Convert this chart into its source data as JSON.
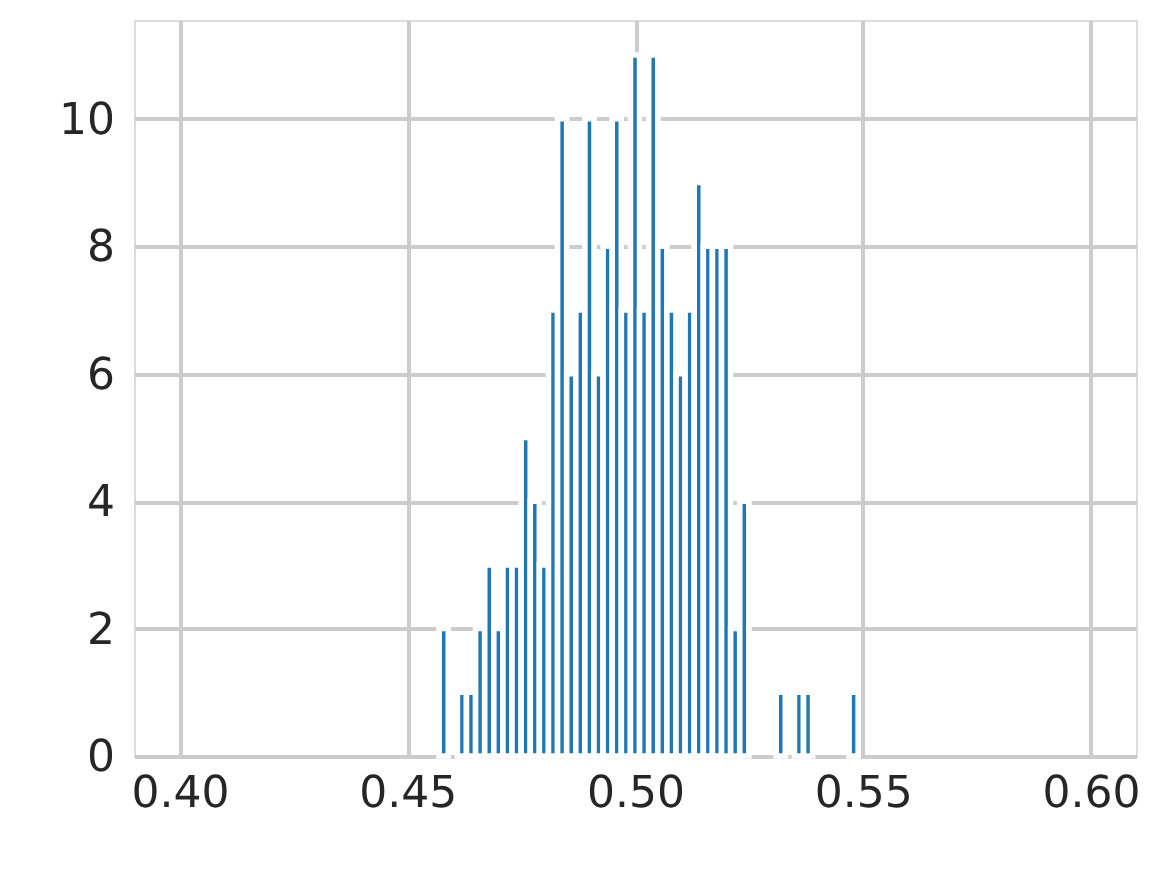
{
  "chart_data": {
    "type": "histogram",
    "color": "#1f77b4",
    "bins": [
      0.457,
      0.459,
      0.461,
      0.463,
      0.465,
      0.467,
      0.469,
      0.471,
      0.473,
      0.475,
      0.477,
      0.479,
      0.481,
      0.483,
      0.485,
      0.487,
      0.489,
      0.491,
      0.493,
      0.495,
      0.497,
      0.499,
      0.501,
      0.503,
      0.505,
      0.507,
      0.509,
      0.511,
      0.513,
      0.515,
      0.517,
      0.519,
      0.521,
      0.523,
      0.525,
      0.527,
      0.529,
      0.531,
      0.533,
      0.535,
      0.537,
      0.539,
      0.541,
      0.543,
      0.545,
      0.547,
      0.549
    ],
    "values": [
      2,
      0,
      1,
      1,
      2,
      3,
      2,
      3,
      3,
      5,
      4,
      3,
      7,
      10,
      6,
      7,
      10,
      6,
      8,
      10,
      7,
      11,
      7,
      11,
      8,
      7,
      6,
      7,
      9,
      8,
      8,
      8,
      2,
      4,
      0,
      0,
      0,
      1,
      0,
      1,
      1,
      0,
      0,
      0,
      0,
      1
    ],
    "xlim": [
      0.39,
      0.61
    ],
    "xticks": [
      {
        "value": 0.4,
        "label": "0.40"
      },
      {
        "value": 0.45,
        "label": "0.45"
      },
      {
        "value": 0.5,
        "label": "0.50"
      },
      {
        "value": 0.55,
        "label": "0.55"
      },
      {
        "value": 0.6,
        "label": "0.60"
      }
    ],
    "ylim": [
      0,
      11.55
    ],
    "yticks": [
      0,
      2,
      4,
      6,
      8,
      10
    ],
    "grid": true
  }
}
